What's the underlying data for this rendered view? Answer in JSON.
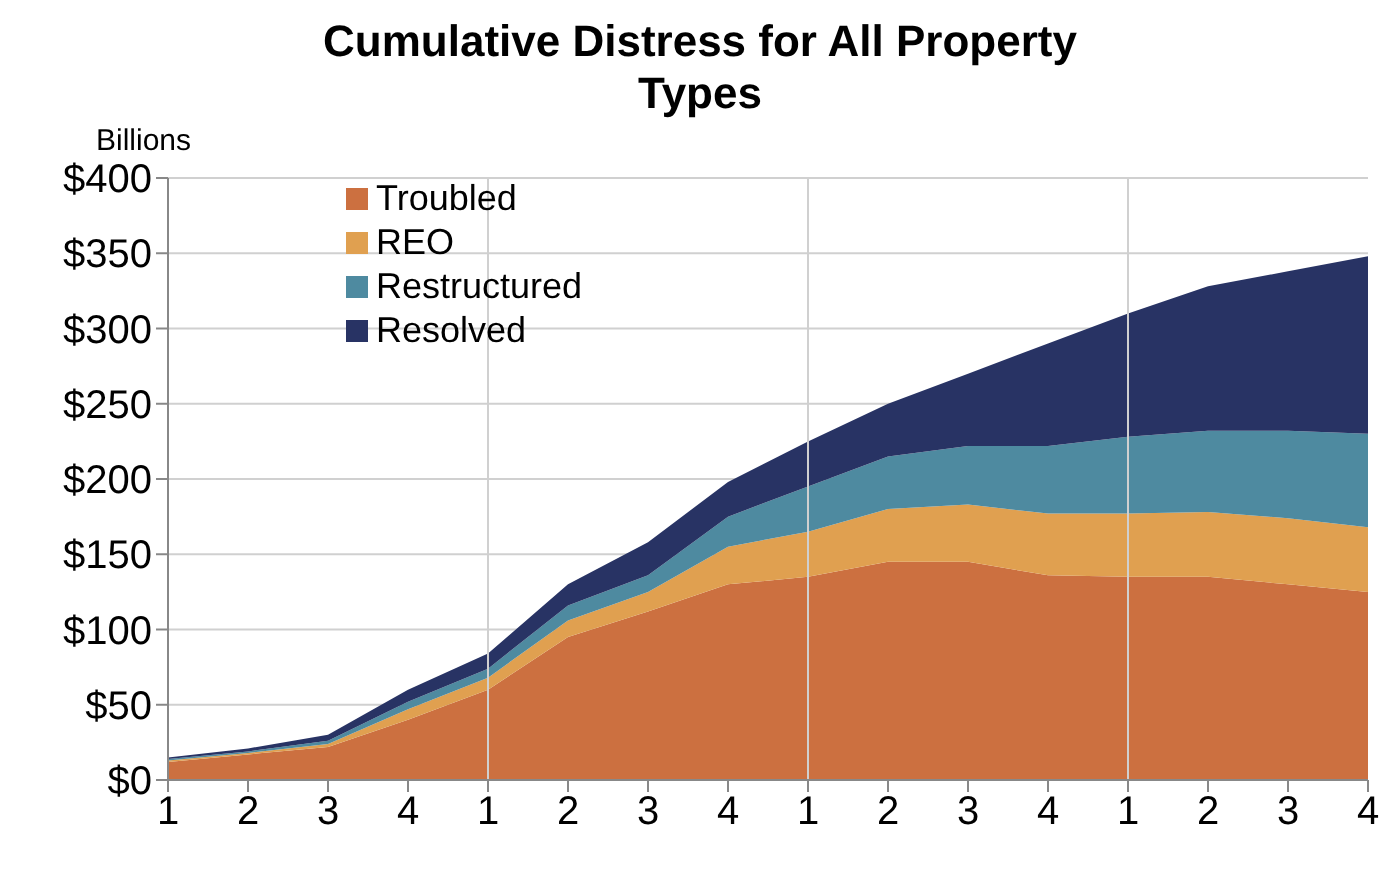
{
  "chart_data": {
    "type": "area",
    "stacked": true,
    "title": "Cumulative Distress for All Property Types",
    "ylabel": "Billions",
    "categories": [
      "1",
      "2",
      "3",
      "4",
      "1",
      "2",
      "3",
      "4",
      "1",
      "2",
      "3",
      "4",
      "1",
      "2",
      "3",
      "4"
    ],
    "series": [
      {
        "name": "Troubled",
        "color": "#cc7040",
        "values": [
          12,
          17,
          22,
          40,
          60,
          95,
          112,
          130,
          135,
          145,
          145,
          136,
          135,
          135,
          130,
          125
        ]
      },
      {
        "name": "REO",
        "color": "#e0a050",
        "values": [
          1,
          1,
          2,
          7,
          8,
          11,
          13,
          25,
          30,
          35,
          38,
          41,
          42,
          43,
          44,
          43
        ]
      },
      {
        "name": "Restructured",
        "color": "#4e8aa0",
        "values": [
          1,
          1,
          2,
          5,
          6,
          10,
          11,
          20,
          30,
          35,
          39,
          45,
          51,
          54,
          58,
          62
        ]
      },
      {
        "name": "Resolved",
        "color": "#283364",
        "values": [
          1,
          2,
          4,
          8,
          10,
          14,
          22,
          23,
          30,
          35,
          48,
          68,
          82,
          96,
          106,
          118
        ]
      }
    ],
    "ylim": [
      0,
      400
    ],
    "yticks": [
      {
        "value": 0,
        "label": "$0"
      },
      {
        "value": 50,
        "label": "$50"
      },
      {
        "value": 100,
        "label": "$100"
      },
      {
        "value": 150,
        "label": "$150"
      },
      {
        "value": 200,
        "label": "$200"
      },
      {
        "value": 250,
        "label": "$250"
      },
      {
        "value": 300,
        "label": "$300"
      },
      {
        "value": 350,
        "label": "$350"
      },
      {
        "value": 400,
        "label": "$400"
      }
    ],
    "grid": true,
    "legend": "top left"
  }
}
